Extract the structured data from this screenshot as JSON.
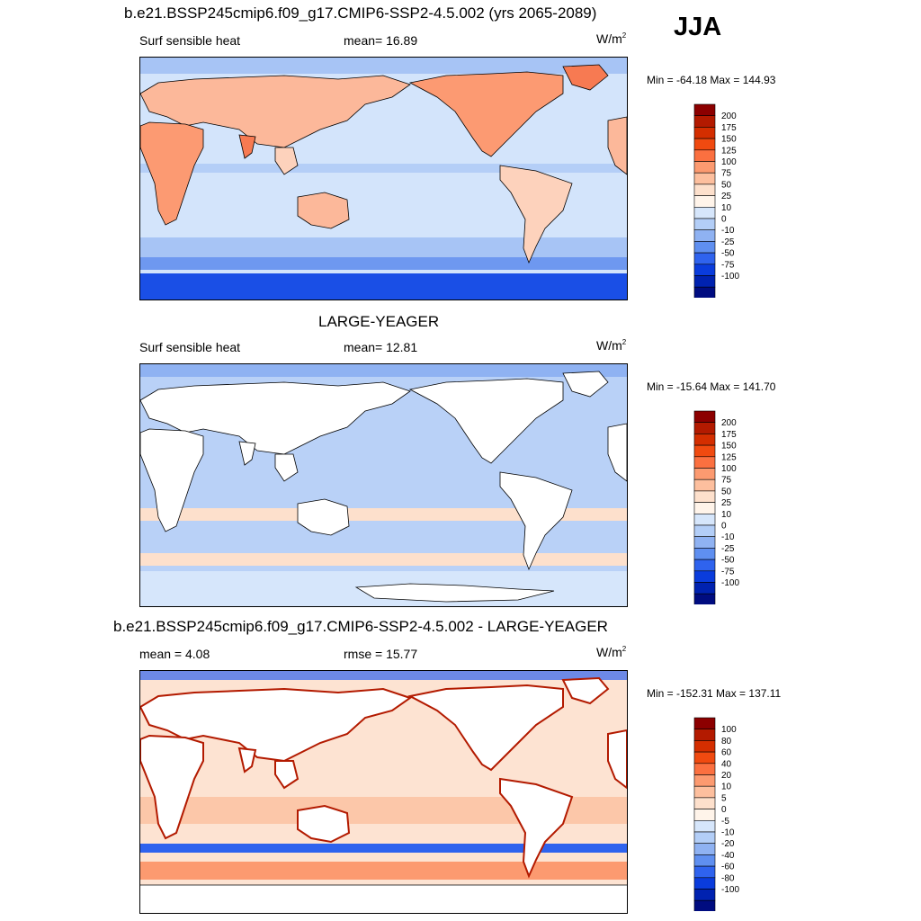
{
  "season": "JJA",
  "panels": [
    {
      "title": "b.e21.BSSP245cmip6.f09_g17.CMIP6-SSP2-4.5.002 (yrs 2065-2089)",
      "left_label": "Surf sensible heat",
      "center_label": "mean=  16.89",
      "units_base": "W/m",
      "units_exp": "2",
      "minmax": "Min = -64.18 Max = 144.93",
      "colorbar": {
        "labels": [
          "200",
          "175",
          "150",
          "125",
          "100",
          "75",
          "50",
          "25",
          "10",
          "0",
          "-10",
          "-25",
          "-50",
          "-75",
          "-100"
        ],
        "colors": [
          "#8c0000",
          "#b31a00",
          "#d42e00",
          "#f04a10",
          "#fb7040",
          "#fc9a70",
          "#fdbf9e",
          "#fde0cc",
          "#fff4ea",
          "#d6e6fb",
          "#b3cef7",
          "#8fb2f2",
          "#5f8ff0",
          "#2f63ee",
          "#0a3cdc",
          "#0022b0",
          "#000c80"
        ]
      },
      "land_colors": [
        "#fcb89a",
        "#fc9a72",
        "#f77a52",
        "#fdd2bc"
      ],
      "ocean_color": "#d3e4fb",
      "band_colors": [
        "#a7c4f5",
        "#6e98f0",
        "#1a4fe6"
      ]
    },
    {
      "title": "LARGE-YEAGER",
      "left_label": "Surf sensible heat",
      "center_label": "mean=  12.81",
      "units_base": "W/m",
      "units_exp": "2",
      "minmax": "Min = -15.64 Max = 141.70",
      "colorbar": {
        "labels": [
          "200",
          "175",
          "150",
          "125",
          "100",
          "75",
          "50",
          "25",
          "10",
          "0",
          "-10",
          "-25",
          "-50",
          "-75",
          "-100"
        ],
        "colors": [
          "#8c0000",
          "#b31a00",
          "#d42e00",
          "#f04a10",
          "#fb7040",
          "#fc9a70",
          "#fdbf9e",
          "#fde0cc",
          "#fff4ea",
          "#d6e6fb",
          "#b3cef7",
          "#8fb2f2",
          "#5f8ff0",
          "#2f63ee",
          "#0a3cdc",
          "#0022b0",
          "#000c80"
        ]
      },
      "ocean_color": "#b9d1f7",
      "band_colors": [
        "#fde0cc",
        "#8fb2f2",
        "#d6e6fb"
      ]
    },
    {
      "title": "b.e21.BSSP245cmip6.f09_g17.CMIP6-SSP2-4.5.002 - LARGE-YEAGER",
      "left_label": "mean =   4.08",
      "center_label": "rmse =  15.77",
      "units_base": "W/m",
      "units_exp": "2",
      "minmax": "Min = -152.31 Max = 137.11",
      "colorbar": {
        "labels": [
          "100",
          "80",
          "60",
          "40",
          "20",
          "10",
          "5",
          "0",
          "-5",
          "-10",
          "-20",
          "-40",
          "-60",
          "-80",
          "-100"
        ],
        "colors": [
          "#8c0000",
          "#b31a00",
          "#d42e00",
          "#f04a10",
          "#fb7040",
          "#fc9a70",
          "#fdbf9e",
          "#fde0cc",
          "#fff4ea",
          "#d6e6fb",
          "#b3cef7",
          "#8fb2f2",
          "#5f8ff0",
          "#2f63ee",
          "#0a3cdc",
          "#0022b0",
          "#000c80"
        ]
      },
      "ocean_color": "#fde3d2",
      "band_colors": [
        "#fbb48e",
        "#2f63ee",
        "#fc9a70"
      ]
    }
  ]
}
